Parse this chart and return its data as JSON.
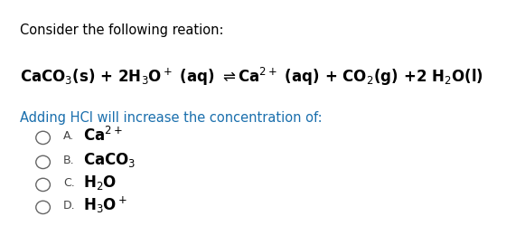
{
  "background_color": "#ffffff",
  "title_text": "Consider the following reation:",
  "title_color": "#000000",
  "title_fontsize": 10.5,
  "question_text": "Adding HCl will increase the concentration of:",
  "question_color": "#1a6fad",
  "question_fontsize": 10.5,
  "equation_fontsize": 12,
  "options": [
    "A.",
    "B.",
    "C.",
    "D."
  ],
  "option_labels": [
    "Ca$^{2+}$",
    "CaCO$_3$",
    "H$_2$O",
    "H$_3$O$^+$"
  ],
  "option_fontsize": 12,
  "option_letter_fontsize": 9,
  "option_color": "#000000",
  "option_letter_color": "#444444",
  "circle_color": "#666666"
}
